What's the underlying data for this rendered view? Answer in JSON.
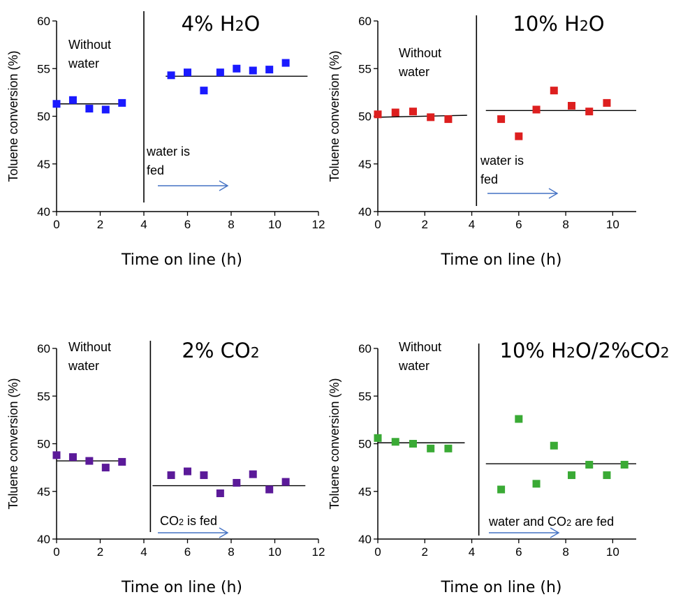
{
  "chart_data": [
    {
      "type": "scatter",
      "title_main": "4% H",
      "title_sub": "2",
      "title_end": "O",
      "ylabel": "Toluene conversion (%)",
      "xlabel": "Time on line (h)",
      "xlim": [
        0,
        12
      ],
      "ylim": [
        40,
        60
      ],
      "xticks": [
        "0",
        "2",
        "4",
        "6",
        "8",
        "10",
        "12"
      ],
      "yticks": [
        "40",
        "45",
        "50",
        "55",
        "60"
      ],
      "color": "#1a1aff",
      "series": [
        {
          "x": [
            0,
            0.75,
            1.5,
            2.25,
            3.0
          ],
          "y": [
            51.3,
            51.7,
            50.8,
            50.7,
            51.4
          ]
        },
        {
          "x": [
            5.25,
            6.0,
            6.75,
            7.5,
            8.25,
            9.0,
            9.75,
            10.5
          ],
          "y": [
            54.3,
            54.6,
            52.7,
            54.6,
            55.0,
            54.8,
            54.9,
            55.6
          ]
        }
      ],
      "fit_lines": [
        {
          "x": [
            0,
            3.0
          ],
          "y": [
            51.3,
            51.3
          ]
        },
        {
          "x": [
            5.0,
            11.5
          ],
          "y": [
            54.2,
            54.2
          ]
        }
      ],
      "separator_x": 4.0,
      "note_before_1": "Without",
      "note_before_2": "water",
      "note_after_1": "water is",
      "note_after_2": "fed",
      "note_after_sub": "",
      "note_after_tail": ""
    },
    {
      "type": "scatter",
      "title_main": "10% H",
      "title_sub": "2",
      "title_end": "O",
      "ylabel": "Toluene conversion (%)",
      "xlabel": "Time on line (h)",
      "xlim": [
        0,
        11
      ],
      "ylim": [
        40,
        60
      ],
      "xticks": [
        "0",
        "2",
        "4",
        "6",
        "8",
        "10"
      ],
      "yticks": [
        "40",
        "45",
        "50",
        "55",
        "60"
      ],
      "color": "#dd1f1f",
      "series": [
        {
          "x": [
            0,
            0.75,
            1.5,
            2.25,
            3.0
          ],
          "y": [
            50.2,
            50.4,
            50.5,
            49.9,
            49.7
          ]
        },
        {
          "x": [
            5.25,
            6.0,
            6.75,
            7.5,
            8.25,
            9.0,
            9.75
          ],
          "y": [
            49.7,
            47.9,
            50.7,
            52.7,
            51.1,
            50.5,
            51.4
          ]
        }
      ],
      "fit_lines": [
        {
          "x": [
            0,
            3.8
          ],
          "y": [
            49.9,
            50.1
          ]
        },
        {
          "x": [
            4.6,
            11.0
          ],
          "y": [
            50.6,
            50.6
          ]
        }
      ],
      "separator_x": 4.2,
      "note_before_1": "Without",
      "note_before_2": "water",
      "note_after_1": "water is",
      "note_after_2": "fed",
      "note_after_sub": "",
      "note_after_tail": ""
    },
    {
      "type": "scatter",
      "title_main": "2% CO",
      "title_sub": "2",
      "title_end": "",
      "ylabel": "Toluene conversion (%)",
      "xlabel": "Time on line (h)",
      "xlim": [
        0,
        12
      ],
      "ylim": [
        40,
        60
      ],
      "xticks": [
        "0",
        "2",
        "4",
        "6",
        "8",
        "10",
        "12"
      ],
      "yticks": [
        "40",
        "45",
        "50",
        "55",
        "60"
      ],
      "color": "#5b1a99",
      "series": [
        {
          "x": [
            0,
            0.75,
            1.5,
            2.25,
            3.0
          ],
          "y": [
            48.8,
            48.6,
            48.2,
            47.5,
            48.1
          ]
        },
        {
          "x": [
            5.25,
            6.0,
            6.75,
            7.5,
            8.25,
            9.0,
            9.75,
            10.5
          ],
          "y": [
            46.7,
            47.1,
            46.7,
            44.8,
            45.9,
            46.8,
            45.2,
            46.0
          ]
        }
      ],
      "fit_lines": [
        {
          "x": [
            0,
            3.0
          ],
          "y": [
            48.2,
            48.2
          ]
        },
        {
          "x": [
            4.4,
            11.4
          ],
          "y": [
            45.6,
            45.6
          ]
        }
      ],
      "separator_x": 4.3,
      "note_before_1": "Without",
      "note_before_2": "water",
      "note_after_1": "CO",
      "note_after_2": "",
      "note_after_sub": "2",
      "note_after_tail": " is fed"
    },
    {
      "type": "scatter",
      "title_main": "10% H",
      "title_sub": "2",
      "title_end": "O/2%CO",
      "title_sub2": "2",
      "ylabel": "Toluene conversion (%)",
      "xlabel": "Time on line (h)",
      "xlim": [
        0,
        11
      ],
      "ylim": [
        40,
        60
      ],
      "xticks": [
        "0",
        "2",
        "4",
        "6",
        "8",
        "10"
      ],
      "yticks": [
        "40",
        "45",
        "50",
        "55",
        "60"
      ],
      "color": "#3aaa35",
      "series": [
        {
          "x": [
            0,
            0.75,
            1.5,
            2.25,
            3.0
          ],
          "y": [
            50.6,
            50.2,
            50.0,
            49.5,
            49.5
          ]
        },
        {
          "x": [
            5.25,
            6.0,
            6.75,
            7.5,
            8.25,
            9.0,
            9.75,
            10.5
          ],
          "y": [
            45.2,
            52.6,
            45.8,
            49.8,
            46.7,
            47.8,
            46.7,
            47.8
          ]
        }
      ],
      "fit_lines": [
        {
          "x": [
            0,
            3.7
          ],
          "y": [
            50.1,
            50.1
          ]
        },
        {
          "x": [
            4.6,
            11.0
          ],
          "y": [
            47.9,
            47.9
          ]
        }
      ],
      "separator_x": 4.3,
      "note_before_1": "Without",
      "note_before_2": "water",
      "note_after_1": "water and CO",
      "note_after_2": "",
      "note_after_sub": "2",
      "note_after_tail": " are fed"
    }
  ]
}
